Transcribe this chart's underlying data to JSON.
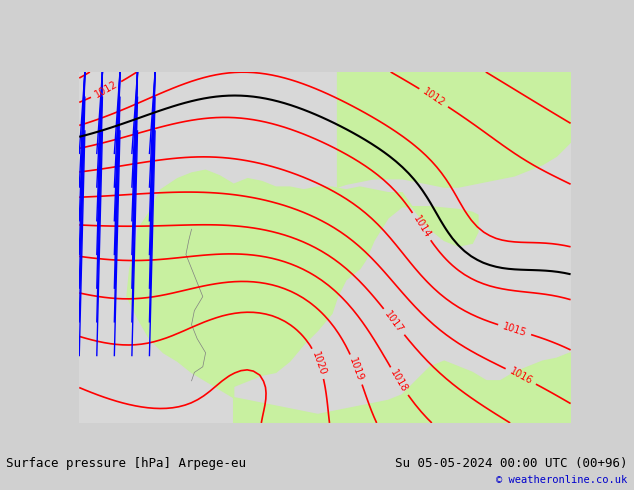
{
  "title_left": "Surface pressure [hPa] Arpege-eu",
  "title_right": "Su 05-05-2024 00:00 UTC (00+96)",
  "copyright": "© weatheronline.co.uk",
  "bg_color": "#d0d0d0",
  "land_color": "#c8f0a0",
  "sea_color": "#d8d8d8",
  "contour_color_red": "#ff0000",
  "contour_color_blue": "#0000ff",
  "contour_color_black": "#000000",
  "title_fontsize": 10,
  "copyright_color": "#0000cc",
  "footer_bg": "#e8e8e8"
}
